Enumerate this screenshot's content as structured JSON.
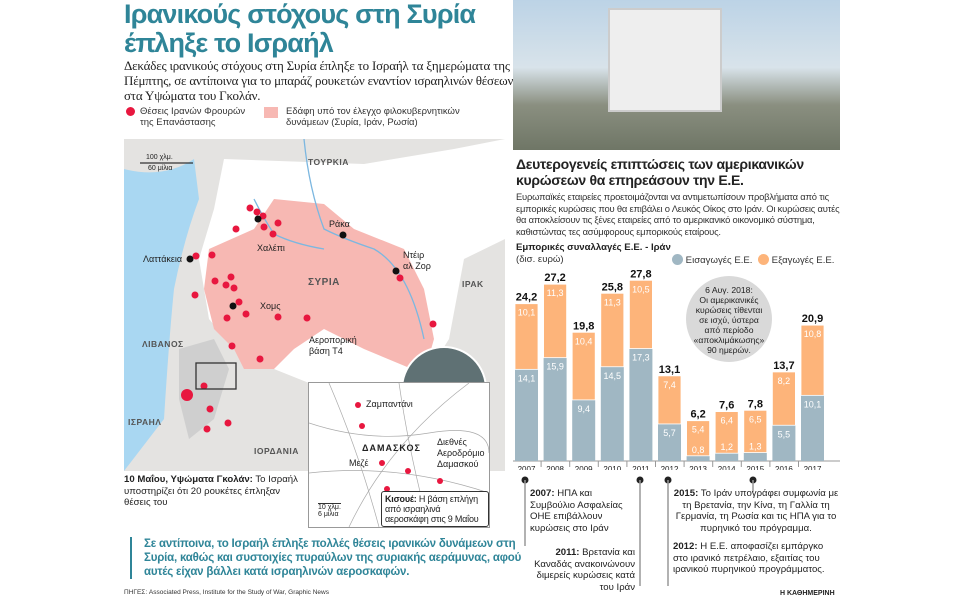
{
  "headline": {
    "line1": "Ιρανικούς στόχους στη Συρία",
    "line2": "έπληξε το Ισραήλ"
  },
  "lead": "Δεκάδες ιρανικούς στόχους στη Συρία έπληξε το Ισραήλ τα ξημερώματα της Πέμπτης, σε αντίποινα για το μπαράζ ρουκετών εναντίον ισραηλινών θέσεων στα Υψώματα του Γκολάν.",
  "legend": {
    "dots": "Θέσεις Ιρανών Φρουρών της Επανάστασης",
    "area": "Εδάφη υπό τον έλεγχο φιλοκυβερνητικών δυνάμεων (Συρία, Ιράν, Ρωσία)",
    "dot_color": "#e8173f",
    "area_color": "#f7b8b3"
  },
  "map": {
    "scale_km": "100 χλμ.",
    "scale_mi": "60 μίλια",
    "countries": {
      "turkey": "ΤΟΥΡΚΙΑ",
      "syria": "ΣΥΡΙΑ",
      "iraq": "ΙΡΑΚ",
      "lebanon": "ΛΙΒΑΝΟΣ",
      "israel": "ΙΣΡΑΗΛ",
      "jordan": "ΙΟΡΔΑΝΙΑ"
    },
    "cities": {
      "raqqa": "Ράκα",
      "aleppo": "Χαλέπι",
      "latakia": "Λαττάκεια",
      "deir1": "Ντέιρ",
      "deir2": "αλ Ζορ",
      "homs": "Χομς",
      "t4_1": "Αεροπορική",
      "t4_2": "βάση Τ4"
    },
    "golan": {
      "bold": "10 Μαΐου, Υψώματα Γκολάν:",
      "text": "Το Ισραήλ υποστηρίζει ότι 20 ρουκέτες έπληξαν θέσεις του"
    },
    "inset": {
      "city": "ΔΑΜΑΣΚΟΣ",
      "zabadani": "Ζαμπαντάνι",
      "mezze": "Μεζέ",
      "airport1": "Διεθνές",
      "airport2": "Αεροδρόμιο",
      "airport3": "Δαμασκού",
      "scale_km": "10 χλμ.",
      "scale_mi": "6 μίλια",
      "kiswe_bold": "Κισουέ:",
      "kiswe_text": "Η βάση επλήγη από ισραηλινά αεροσκάφη στις 9 Μαΐου"
    }
  },
  "quote": "Σε αντίποινα, το Ισραήλ έπληξε πολλές θέσεις ιρανικών δυνάμεων στη Συρία, καθώς και συστοιχίες πυραύλων της συριακής αεράμυνας, αφού αυτές είχαν βάλλει κατά ισραηλινών αεροσκαφών.",
  "sources": "ΠΗΓΕΣ: Associated Press, Institute for the Study of War, Graphic News",
  "right": {
    "title": "Δευτερογενείς επιπτώσεις των αμερικανικών κυρώσεων θα επηρεάσουν την Ε.Ε.",
    "text": "Ευρωπαϊκές εταιρείες προετοιμάζονται να αντιμετωπίσουν προβλήματα από τις εμπορικές κυρώσεις που θα επιβάλει ο Λευκός Οίκος στο Ιράν. Οι κυρώσεις αυτές θα αποκλείσουν τις ξένες εταιρείες από το αμερικανικό οικονομικό σύστημα, καθιστώντας τες ασύμφορους εμπορικούς εταίρους.",
    "bubble": [
      "6 Αυγ. 2018:",
      "Οι αμερικανικές",
      "κυρώσεις τίθενται",
      "σε ισχύ, ύστερα",
      "από περίοδο",
      "«αποκλιμάκωσης»",
      "90 ημερών."
    ],
    "timeline": [
      {
        "bold": "2007:",
        "text": "ΗΠΑ και Συμβούλιο Ασφαλείας ΟΗΕ επιβάλλουν κυρώσεις στο Ιράν"
      },
      {
        "bold": "2011:",
        "text": "Βρετανία και Καναδάς ανακοινώνουν διμερείς κυρώσεις κατά του Ιράν"
      },
      {
        "bold": "2015:",
        "text": "Το Ιράν υπογράφει συμφωνία με τη Βρετανία, την Κίνα, τη Γαλλία τη Γερμανία, τη Ρωσία και τις ΗΠΑ για το πυρηνικό του πρόγραμμα."
      },
      {
        "bold": "2012:",
        "text": "Η Ε.Ε. αποφασίζει εμπάργκο στο ιρανικό πετρέλαιο, εξαιτίας του ιρανικού πυρηνικού προγράμματος."
      }
    ],
    "brand": "Η ΚΑΘΗΜΕΡΙΝΗ"
  },
  "chart_data": {
    "type": "bar",
    "stacked": true,
    "title": "Εμπορικές συναλλαγές Ε.Ε. - Ιράν",
    "unit": "(δισ. ευρώ)",
    "categories": [
      "2007",
      "2008",
      "2009",
      "2010",
      "2011",
      "2012",
      "2013",
      "2014",
      "2015",
      "2016",
      "2017"
    ],
    "series": [
      {
        "name": "Εισαγωγές Ε.Ε.",
        "color": "#a0b7c3",
        "values": [
          14.1,
          15.9,
          9.4,
          14.5,
          17.3,
          5.7,
          0.8,
          1.2,
          1.3,
          5.5,
          10.1
        ]
      },
      {
        "name": "Εξαγωγές Ε.Ε.",
        "color": "#fdb47a",
        "values": [
          10.1,
          11.3,
          10.4,
          11.3,
          10.5,
          7.4,
          5.4,
          6.4,
          6.5,
          8.2,
          10.8
        ]
      }
    ],
    "totals": [
      24.2,
      27.2,
      19.8,
      25.8,
      27.8,
      13.1,
      6.2,
      7.6,
      7.8,
      13.7,
      20.9
    ],
    "legend": "top-right",
    "grid": false
  }
}
